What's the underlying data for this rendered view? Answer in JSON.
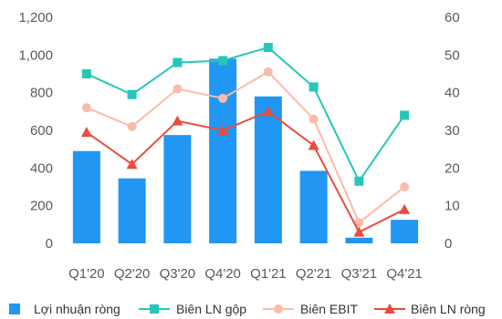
{
  "chart_data": {
    "type": "bar",
    "categories": [
      "Q1'20",
      "Q2'20",
      "Q3'20",
      "Q4'20",
      "Q1'21",
      "Q2'21",
      "Q3'21",
      "Q4'21"
    ],
    "bar_series": {
      "name": "Lợi nhuận ròng",
      "color": "#2196F3",
      "values": [
        490,
        345,
        575,
        980,
        780,
        385,
        30,
        125
      ]
    },
    "line_series": [
      {
        "name": "Biên LN gộp",
        "color": "#26C6BA",
        "marker": "square",
        "values": [
          45,
          39.5,
          48,
          48.5,
          52,
          41.5,
          16.5,
          34
        ]
      },
      {
        "name": "Biên EBIT",
        "color": "#F8BCA8",
        "marker": "circle",
        "values": [
          36,
          31,
          41,
          38.5,
          45.5,
          33,
          5.5,
          15
        ]
      },
      {
        "name": "Biên LN ròng",
        "color": "#E84C3D",
        "marker": "triangle",
        "values": [
          29.5,
          21,
          32.5,
          30,
          35,
          26,
          3,
          9
        ]
      }
    ],
    "y_left": {
      "min": 0,
      "max": 1200,
      "step": 200,
      "tick_labels": [
        "0",
        "200",
        "400",
        "600",
        "800",
        "1,000",
        "1,200"
      ]
    },
    "y_right": {
      "min": 0,
      "max": 60,
      "step": 10,
      "tick_labels": [
        "0",
        "10",
        "20",
        "30",
        "40",
        "50",
        "60"
      ]
    },
    "grid": false,
    "legend_position": "bottom"
  }
}
